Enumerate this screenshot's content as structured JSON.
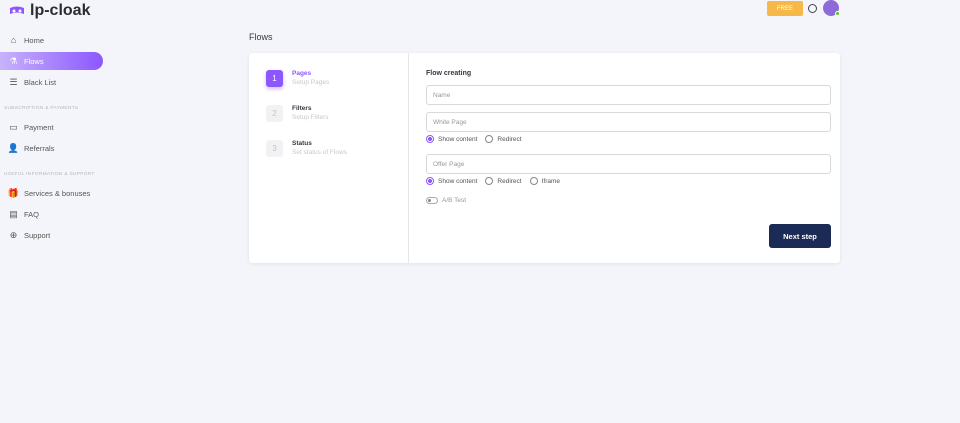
{
  "app": {
    "name": "lp-cloak",
    "plan_badge": "FREE"
  },
  "sidebar": {
    "items": [
      {
        "label": "Home"
      },
      {
        "label": "Flows"
      },
      {
        "label": "Black List"
      }
    ],
    "section1": "SUBSCRIPTION & PAYMENTS",
    "items2": [
      {
        "label": "Payment"
      },
      {
        "label": "Referrals"
      }
    ],
    "section2": "USEFUL INFORMATION & SUPPORT",
    "items3": [
      {
        "label": "Services & bonuses"
      },
      {
        "label": "FAQ"
      },
      {
        "label": "Support"
      }
    ]
  },
  "page": {
    "title": "Flows"
  },
  "steps": [
    {
      "num": "1",
      "title": "Pages",
      "sub": "Setup Pages"
    },
    {
      "num": "2",
      "title": "Filters",
      "sub": "Setup Filters"
    },
    {
      "num": "3",
      "title": "Status",
      "sub": "Set status of Flows"
    }
  ],
  "form": {
    "title": "Flow creating",
    "name_placeholder": "Name",
    "white_placeholder": "White Page",
    "white_options": [
      "Show content",
      "Redirect"
    ],
    "offer_placeholder": "Offer Page",
    "offer_options": [
      "Show content",
      "Redirect",
      "Iframe"
    ],
    "ab_label": "A/B Test",
    "next_label": "Next step"
  },
  "colors": {
    "accent": "#8c57ff",
    "button": "#1c2b55",
    "badge": "#f6b949"
  }
}
